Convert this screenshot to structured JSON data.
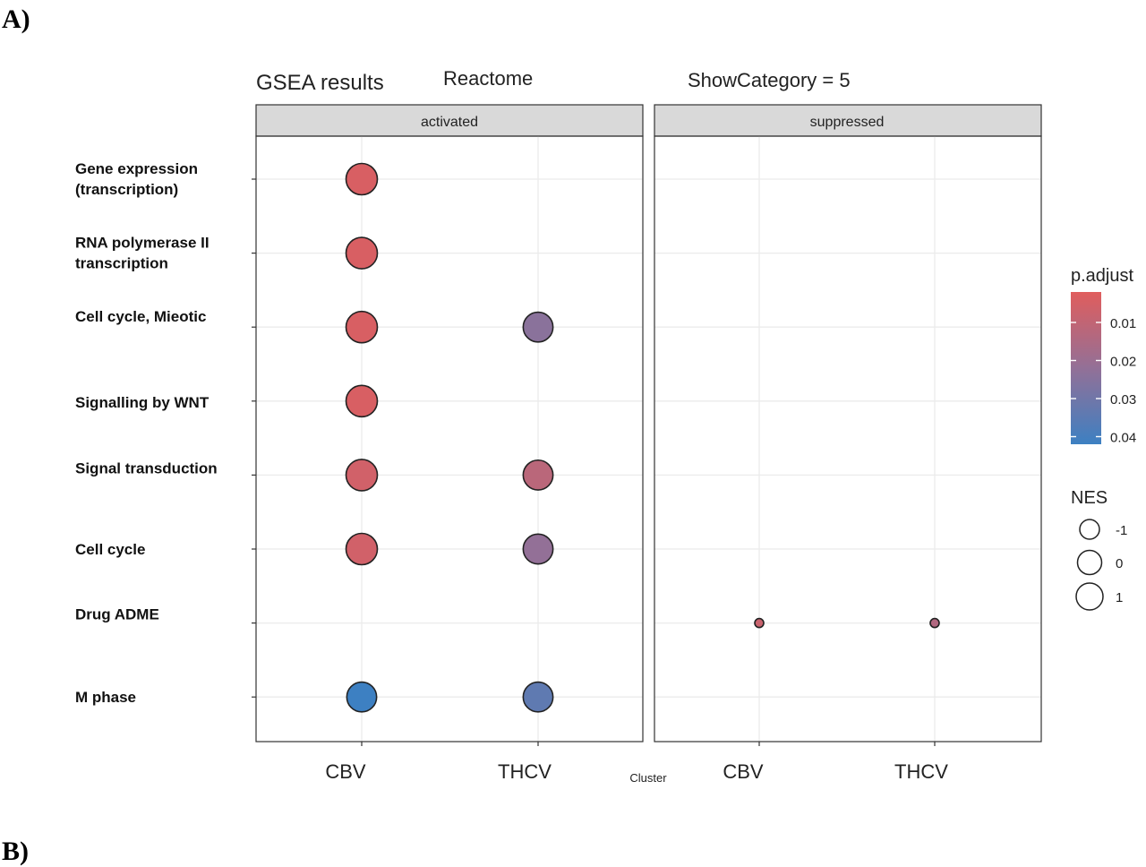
{
  "panel_labels": [
    "A)",
    "B)"
  ],
  "chart_data": {
    "type": "scatter",
    "title": "GSEA results",
    "subtitle_left": "Reactome",
    "subtitle_right": "ShowCategory = 5",
    "xlabel": "Cluster",
    "facets": [
      "activated",
      "suppressed"
    ],
    "x_categories": [
      "CBV",
      "THCV"
    ],
    "y_categories": [
      [
        "Gene expression",
        "(transcription)"
      ],
      [
        "RNA  polymerase II",
        "transcription"
      ],
      [
        "Cell cycle, Mieotic"
      ],
      [
        "Signalling  by WNT"
      ],
      [
        "Signal transduction"
      ],
      [
        "Cell cycle"
      ],
      [
        "Drug ADME"
      ],
      [
        "M phase"
      ]
    ],
    "color_scale": {
      "title": "p.adjust",
      "ticks": [
        0.01,
        0.02,
        0.03,
        0.04
      ],
      "tick_labels": [
        "0.01",
        "0.02",
        "0.03",
        "0.04"
      ],
      "low_color": "#e05d5d",
      "high_color": "#3d80c2",
      "range": [
        0.002,
        0.042
      ]
    },
    "size_scale": {
      "title": "NES",
      "ticks": [
        -1,
        0,
        1
      ],
      "tick_labels": [
        "-1",
        "0",
        "1"
      ]
    },
    "points": [
      {
        "facet": "activated",
        "cluster": "CBV",
        "term": 0,
        "NES": 2.0,
        "p_adjust": 0.004
      },
      {
        "facet": "activated",
        "cluster": "CBV",
        "term": 1,
        "NES": 2.0,
        "p_adjust": 0.004
      },
      {
        "facet": "activated",
        "cluster": "CBV",
        "term": 2,
        "NES": 2.0,
        "p_adjust": 0.004
      },
      {
        "facet": "activated",
        "cluster": "CBV",
        "term": 3,
        "NES": 2.0,
        "p_adjust": 0.004
      },
      {
        "facet": "activated",
        "cluster": "CBV",
        "term": 4,
        "NES": 2.0,
        "p_adjust": 0.006
      },
      {
        "facet": "activated",
        "cluster": "CBV",
        "term": 5,
        "NES": 2.0,
        "p_adjust": 0.006
      },
      {
        "facet": "activated",
        "cluster": "CBV",
        "term": 7,
        "NES": 1.9,
        "p_adjust": 0.042
      },
      {
        "facet": "activated",
        "cluster": "THCV",
        "term": 2,
        "NES": 1.9,
        "p_adjust": 0.024
      },
      {
        "facet": "activated",
        "cluster": "THCV",
        "term": 4,
        "NES": 1.9,
        "p_adjust": 0.012
      },
      {
        "facet": "activated",
        "cluster": "THCV",
        "term": 5,
        "NES": 1.9,
        "p_adjust": 0.022
      },
      {
        "facet": "activated",
        "cluster": "THCV",
        "term": 7,
        "NES": 1.9,
        "p_adjust": 0.034
      },
      {
        "facet": "suppressed",
        "cluster": "CBV",
        "term": 6,
        "NES": -1.6,
        "p_adjust": 0.008
      },
      {
        "facet": "suppressed",
        "cluster": "THCV",
        "term": 6,
        "NES": -1.4,
        "p_adjust": 0.014
      }
    ]
  }
}
